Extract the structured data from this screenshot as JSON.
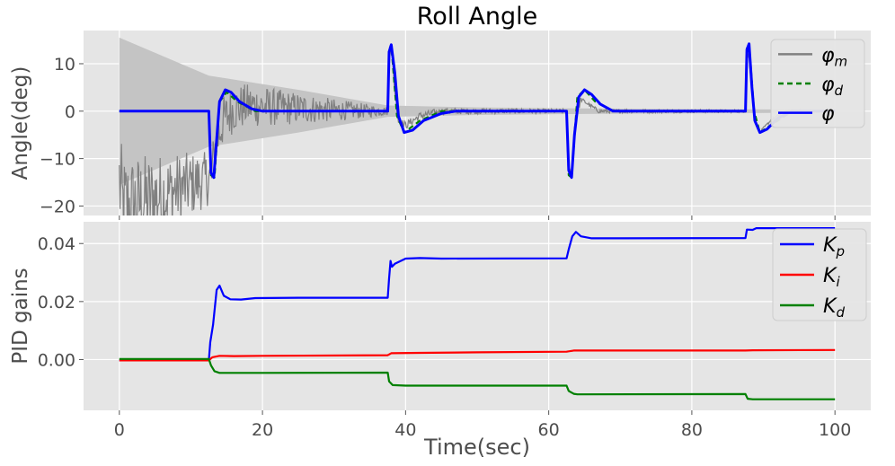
{
  "figure": {
    "title": "Roll Angle",
    "xlabel": "Time(sec)"
  },
  "style": {
    "panel_bg": "#e5e5e5",
    "grid": "#ffffff",
    "text": "#4d4d4d"
  },
  "chart_data": [
    {
      "type": "line",
      "title": "Roll Angle",
      "xlabel": "",
      "ylabel": "Angle(deg)",
      "xlim": [
        -5,
        105
      ],
      "ylim": [
        -22,
        17
      ],
      "xticks": [
        0,
        20,
        40,
        60,
        80,
        100
      ],
      "yticks": [
        -20,
        -10,
        0,
        10
      ],
      "yticklabels": [
        "−20",
        "−10",
        "0",
        "10"
      ],
      "grid": true,
      "legend_position": "top-right",
      "series": [
        {
          "name": "φm",
          "label_main": "φ",
          "label_sub": "m",
          "color": "#808080",
          "dash": "solid",
          "style": "noisy-envelope",
          "envelope": [
            [
              0,
              15.5
            ],
            [
              12.5,
              7.5
            ],
            [
              25,
              4.5
            ],
            [
              37.5,
              1.2
            ],
            [
              50,
              0.8
            ],
            [
              62.5,
              0.6
            ],
            [
              75,
              0.5
            ],
            [
              87.5,
              0.4
            ],
            [
              100,
              0.3
            ]
          ],
          "points": [
            [
              0,
              -15
            ],
            [
              0.5,
              -20.5
            ],
            [
              12.9,
              -14
            ],
            [
              13.3,
              -8
            ],
            [
              14.5,
              -2
            ],
            [
              16,
              0.5
            ],
            [
              18,
              1.2
            ],
            [
              22,
              0.8
            ],
            [
              30,
              0.2
            ],
            [
              37.5,
              0
            ],
            [
              37.7,
              12
            ],
            [
              38,
              13.8
            ],
            [
              38.5,
              4
            ],
            [
              39,
              -2
            ],
            [
              40,
              -3
            ],
            [
              42,
              -1
            ],
            [
              45,
              0
            ],
            [
              62.5,
              0
            ],
            [
              62.8,
              -12
            ],
            [
              63.2,
              -13.2
            ],
            [
              63.6,
              -3
            ],
            [
              64.5,
              2.5
            ],
            [
              65.5,
              1.5
            ],
            [
              67,
              0
            ],
            [
              87.5,
              0
            ],
            [
              87.7,
              13
            ],
            [
              88,
              11
            ],
            [
              88.7,
              -1
            ],
            [
              89.5,
              -4.5
            ],
            [
              91,
              -2
            ],
            [
              93,
              0
            ],
            [
              100,
              0
            ]
          ]
        },
        {
          "name": "φd",
          "label_main": "φ",
          "label_sub": "d",
          "color": "#008000",
          "dash": "6,4",
          "points": [
            [
              0,
              0
            ],
            [
              12.5,
              0
            ],
            [
              12.8,
              -13.5
            ],
            [
              13.3,
              -14
            ],
            [
              14,
              2
            ],
            [
              15,
              4
            ],
            [
              16.5,
              2
            ],
            [
              19,
              0
            ],
            [
              37.5,
              0
            ],
            [
              37.7,
              13
            ],
            [
              38,
              14
            ],
            [
              38.8,
              -1
            ],
            [
              39.8,
              -4.5
            ],
            [
              42,
              -2
            ],
            [
              45,
              0
            ],
            [
              62.5,
              0
            ],
            [
              62.8,
              -13.5
            ],
            [
              63.2,
              -14
            ],
            [
              64,
              3
            ],
            [
              65,
              4.5
            ],
            [
              66.5,
              2
            ],
            [
              69,
              0
            ],
            [
              87.5,
              0
            ],
            [
              87.7,
              13.5
            ],
            [
              88,
              14
            ],
            [
              88.7,
              0
            ],
            [
              89.5,
              -4.5
            ],
            [
              91,
              -3
            ],
            [
              94,
              0
            ],
            [
              100,
              0
            ]
          ]
        },
        {
          "name": "φ",
          "label_main": "φ",
          "label_sub": "",
          "color": "#0000ff",
          "dash": "solid",
          "points": [
            [
              0,
              0
            ],
            [
              12.5,
              0
            ],
            [
              12.8,
              -13
            ],
            [
              13.2,
              -14
            ],
            [
              13.6,
              -6
            ],
            [
              14,
              2
            ],
            [
              14.8,
              4.5
            ],
            [
              15.6,
              4
            ],
            [
              16.8,
              2
            ],
            [
              18.5,
              0.5
            ],
            [
              20,
              0
            ],
            [
              37.5,
              0
            ],
            [
              37.7,
              12.5
            ],
            [
              38,
              14
            ],
            [
              38.5,
              8
            ],
            [
              39,
              -1
            ],
            [
              39.8,
              -4.5
            ],
            [
              41,
              -4
            ],
            [
              42.5,
              -2
            ],
            [
              45,
              -0.5
            ],
            [
              47,
              0
            ],
            [
              62.5,
              0
            ],
            [
              62.8,
              -12.5
            ],
            [
              63.2,
              -14
            ],
            [
              63.6,
              -5
            ],
            [
              64.2,
              3
            ],
            [
              65,
              4.5
            ],
            [
              66,
              3.5
            ],
            [
              67.2,
              1.5
            ],
            [
              69,
              0
            ],
            [
              87.5,
              0
            ],
            [
              87.7,
              13
            ],
            [
              88,
              14.2
            ],
            [
              88.4,
              5
            ],
            [
              88.8,
              -2
            ],
            [
              89.5,
              -4.5
            ],
            [
              90.5,
              -3.8
            ],
            [
              92,
              -1.5
            ],
            [
              94,
              0
            ],
            [
              100,
              0
            ]
          ]
        }
      ]
    },
    {
      "type": "line",
      "title": "",
      "xlabel": "Time(sec)",
      "ylabel": "PID gains",
      "xlim": [
        -5,
        105
      ],
      "ylim": [
        -0.0175,
        0.0475
      ],
      "xticks": [
        0,
        20,
        40,
        60,
        80,
        100
      ],
      "yticks": [
        0.0,
        0.02,
        0.04
      ],
      "yticklabels": [
        "0.00",
        "0.02",
        "0.04"
      ],
      "grid": true,
      "legend_position": "top-right",
      "series": [
        {
          "name": "Kp",
          "label_main": "K",
          "label_sub": "p",
          "color": "#0000ff",
          "dash": "solid",
          "points": [
            [
              0,
              -0.0003
            ],
            [
              12.5,
              -0.0003
            ],
            [
              12.7,
              0.006
            ],
            [
              13.1,
              0.012
            ],
            [
              13.6,
              0.024
            ],
            [
              14,
              0.0255
            ],
            [
              14.6,
              0.022
            ],
            [
              15.5,
              0.0208
            ],
            [
              17,
              0.0207
            ],
            [
              19,
              0.0212
            ],
            [
              25,
              0.0213
            ],
            [
              37.5,
              0.0213
            ],
            [
              37.7,
              0.028
            ],
            [
              37.9,
              0.034
            ],
            [
              38.1,
              0.032
            ],
            [
              38.5,
              0.033
            ],
            [
              40,
              0.0348
            ],
            [
              42,
              0.035
            ],
            [
              45,
              0.0348
            ],
            [
              62.5,
              0.0349
            ],
            [
              62.8,
              0.038
            ],
            [
              63.3,
              0.0425
            ],
            [
              63.8,
              0.044
            ],
            [
              64.5,
              0.0425
            ],
            [
              66,
              0.0418
            ],
            [
              70,
              0.0418
            ],
            [
              87.5,
              0.0419
            ],
            [
              87.7,
              0.0448
            ],
            [
              88.5,
              0.0447
            ],
            [
              89,
              0.0453
            ],
            [
              100,
              0.0453
            ]
          ]
        },
        {
          "name": "Ki",
          "label_main": "K",
          "label_sub": "i",
          "color": "#ff0000",
          "dash": "solid",
          "points": [
            [
              0,
              -0.0003
            ],
            [
              12.5,
              -0.0003
            ],
            [
              13,
              0.0008
            ],
            [
              14,
              0.0013
            ],
            [
              16,
              0.0012
            ],
            [
              20,
              0.0013
            ],
            [
              37.5,
              0.0015
            ],
            [
              38,
              0.0022
            ],
            [
              42,
              0.0023
            ],
            [
              50,
              0.0025
            ],
            [
              62.5,
              0.0027
            ],
            [
              63.5,
              0.0031
            ],
            [
              70,
              0.0031
            ],
            [
              87.5,
              0.0031
            ],
            [
              88.5,
              0.0032
            ],
            [
              100,
              0.0033
            ]
          ]
        },
        {
          "name": "Kd",
          "label_main": "K",
          "label_sub": "d",
          "color": "#008000",
          "dash": "solid",
          "points": [
            [
              0,
              0.0002
            ],
            [
              12.5,
              0.0002
            ],
            [
              12.8,
              -0.002
            ],
            [
              13.3,
              -0.004
            ],
            [
              14,
              -0.0046
            ],
            [
              20,
              -0.0046
            ],
            [
              37.5,
              -0.0045
            ],
            [
              37.7,
              -0.0075
            ],
            [
              38.2,
              -0.0088
            ],
            [
              40,
              -0.009
            ],
            [
              62.5,
              -0.009
            ],
            [
              62.8,
              -0.0108
            ],
            [
              63.5,
              -0.0118
            ],
            [
              64,
              -0.012
            ],
            [
              87.5,
              -0.0119
            ],
            [
              87.8,
              -0.0135
            ],
            [
              88.5,
              -0.0137
            ],
            [
              100,
              -0.0137
            ]
          ]
        }
      ]
    }
  ]
}
